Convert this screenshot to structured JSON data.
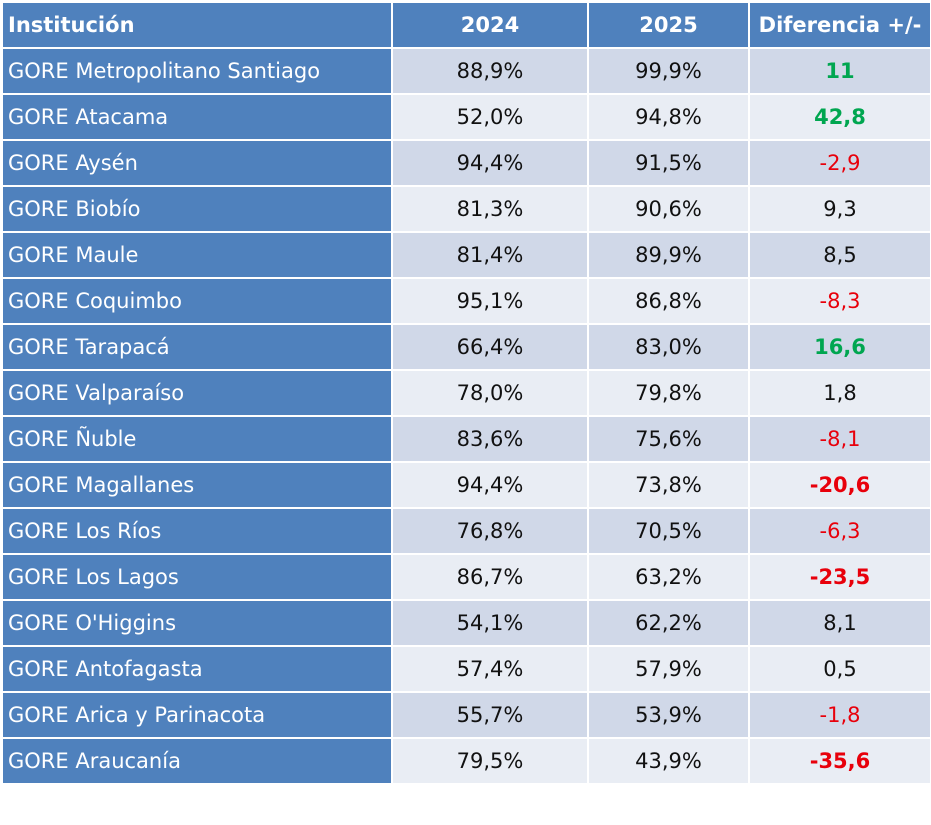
{
  "table": {
    "headers": [
      "Institución",
      "2024",
      "2025",
      "Diferencia +/-"
    ],
    "rows": [
      {
        "institucion": "GORE Metropolitano Santiago",
        "y2024": "88,9%",
        "y2025": "99,9%",
        "diferencia": "11",
        "style": "pos-strong"
      },
      {
        "institucion": "GORE Atacama",
        "y2024": "52,0%",
        "y2025": "94,8%",
        "diferencia": "42,8",
        "style": "pos-strong"
      },
      {
        "institucion": "GORE Aysén",
        "y2024": "94,4%",
        "y2025": "91,5%",
        "diferencia": "-2,9",
        "style": "neg"
      },
      {
        "institucion": "GORE Biobío",
        "y2024": "81,3%",
        "y2025": "90,6%",
        "diferencia": "9,3",
        "style": "neutral"
      },
      {
        "institucion": "GORE Maule",
        "y2024": "81,4%",
        "y2025": "89,9%",
        "diferencia": "8,5",
        "style": "neutral"
      },
      {
        "institucion": "GORE Coquimbo",
        "y2024": "95,1%",
        "y2025": "86,8%",
        "diferencia": "-8,3",
        "style": "neg"
      },
      {
        "institucion": "GORE Tarapacá",
        "y2024": "66,4%",
        "y2025": "83,0%",
        "diferencia": "16,6",
        "style": "pos-strong"
      },
      {
        "institucion": "GORE Valparaíso",
        "y2024": "78,0%",
        "y2025": "79,8%",
        "diferencia": "1,8",
        "style": "neutral"
      },
      {
        "institucion": "GORE Ñuble",
        "y2024": "83,6%",
        "y2025": "75,6%",
        "diferencia": "-8,1",
        "style": "neg"
      },
      {
        "institucion": "GORE Magallanes",
        "y2024": "94,4%",
        "y2025": "73,8%",
        "diferencia": "-20,6",
        "style": "neg-strong"
      },
      {
        "institucion": "GORE Los Ríos",
        "y2024": "76,8%",
        "y2025": "70,5%",
        "diferencia": "-6,3",
        "style": "neg"
      },
      {
        "institucion": "GORE Los Lagos",
        "y2024": "86,7%",
        "y2025": "63,2%",
        "diferencia": "-23,5",
        "style": "neg-strong"
      },
      {
        "institucion": "GORE O'Higgins",
        "y2024": "54,1%",
        "y2025": "62,2%",
        "diferencia": "8,1",
        "style": "neutral"
      },
      {
        "institucion": "GORE Antofagasta",
        "y2024": "57,4%",
        "y2025": "57,9%",
        "diferencia": "0,5",
        "style": "neutral"
      },
      {
        "institucion": "GORE Arica y Parinacota",
        "y2024": "55,7%",
        "y2025": "53,9%",
        "diferencia": "-1,8",
        "style": "neg"
      },
      {
        "institucion": "GORE Araucanía",
        "y2024": "79,5%",
        "y2025": "43,9%",
        "diferencia": "-35,6",
        "style": "neg-strong"
      }
    ]
  },
  "colors": {
    "header_blue": "#4f81bd",
    "row_band_dark": "#d0d8e8",
    "row_band_light": "#e9edf4",
    "positive_green": "#00a650",
    "negative_red": "#e8000b"
  }
}
